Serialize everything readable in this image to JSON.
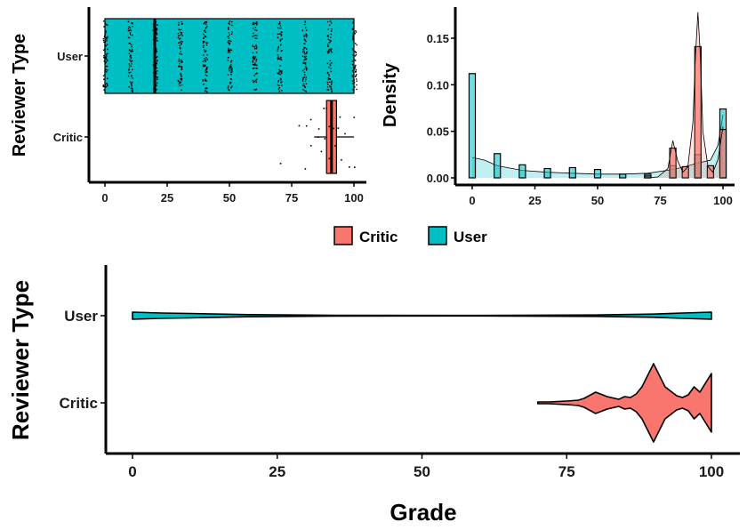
{
  "colors": {
    "critic": "#f8766d",
    "user": "#00bfc4"
  },
  "chart_data": [
    {
      "type": "box",
      "panel": "top-left",
      "xlabel": "",
      "ylabel": "Reviewer Type",
      "xlim": [
        0,
        100
      ],
      "xticks": [
        "0",
        "25",
        "50",
        "75",
        "100"
      ],
      "categories": [
        "User",
        "Critic"
      ],
      "boxes": [
        {
          "name": "User",
          "whisker_low": 0,
          "q1": 0,
          "median": 20,
          "q3": 100,
          "whisker_high": 100
        },
        {
          "name": "Critic",
          "whisker_low": 84,
          "q1": 89,
          "median": 91,
          "q3": 93,
          "whisker_high": 100
        }
      ],
      "jitter_user_columns": [
        0,
        10,
        20,
        30,
        40,
        50,
        60,
        70,
        80,
        90,
        100
      ],
      "jitter_critic_points": [
        70,
        78,
        80,
        80,
        82,
        83,
        85,
        86,
        87,
        88,
        88,
        89,
        90,
        90,
        90,
        91,
        91,
        92,
        93,
        94,
        95,
        96,
        98,
        100,
        100
      ]
    },
    {
      "type": "histogram",
      "panel": "top-right",
      "xlabel": "",
      "ylabel": "Density",
      "xlim": [
        0,
        100
      ],
      "ylim": [
        0,
        0.18
      ],
      "xticks": [
        "0",
        "25",
        "50",
        "75",
        "100"
      ],
      "yticks": [
        "0.00",
        "0.05",
        "0.10",
        "0.15"
      ],
      "bin_width": 2.5,
      "series": [
        {
          "name": "User",
          "bins": [
            {
              "x": 0,
              "y": 0.112
            },
            {
              "x": 10,
              "y": 0.026
            },
            {
              "x": 20,
              "y": 0.014
            },
            {
              "x": 30,
              "y": 0.01
            },
            {
              "x": 40,
              "y": 0.011
            },
            {
              "x": 50,
              "y": 0.009
            },
            {
              "x": 60,
              "y": 0.004
            },
            {
              "x": 70,
              "y": 0.004
            },
            {
              "x": 80,
              "y": 0.013
            },
            {
              "x": 90,
              "y": 0.025
            },
            {
              "x": 100,
              "y": 0.074
            }
          ]
        },
        {
          "name": "Critic",
          "bins": [
            {
              "x": 70,
              "y": 0.002
            },
            {
              "x": 80,
              "y": 0.032
            },
            {
              "x": 85,
              "y": 0.012
            },
            {
              "x": 90,
              "y": 0.141
            },
            {
              "x": 95,
              "y": 0.013
            },
            {
              "x": 100,
              "y": 0.052
            }
          ]
        }
      ],
      "density_curves": [
        {
          "name": "User",
          "points": [
            [
              0,
              0.022
            ],
            [
              5,
              0.019
            ],
            [
              10,
              0.013
            ],
            [
              20,
              0.008
            ],
            [
              30,
              0.006
            ],
            [
              40,
              0.005
            ],
            [
              50,
              0.004
            ],
            [
              60,
              0.004
            ],
            [
              70,
              0.005
            ],
            [
              80,
              0.009
            ],
            [
              85,
              0.012
            ],
            [
              90,
              0.016
            ],
            [
              95,
              0.019
            ],
            [
              98,
              0.035
            ],
            [
              100,
              0.068
            ]
          ]
        },
        {
          "name": "Critic",
          "points": [
            [
              70,
              0.0
            ],
            [
              74,
              0.001
            ],
            [
              78,
              0.01
            ],
            [
              80,
              0.04
            ],
            [
              82,
              0.018
            ],
            [
              84,
              0.006
            ],
            [
              86,
              0.012
            ],
            [
              88,
              0.06
            ],
            [
              89,
              0.13
            ],
            [
              90,
              0.178
            ],
            [
              91,
              0.13
            ],
            [
              92,
              0.05
            ],
            [
              94,
              0.012
            ],
            [
              96,
              0.006
            ],
            [
              98,
              0.02
            ],
            [
              100,
              0.055
            ]
          ]
        }
      ]
    },
    {
      "type": "violin",
      "panel": "bottom",
      "xlabel": "Grade",
      "ylabel": "Reviewer Type",
      "xlim": [
        0,
        100
      ],
      "xticks": [
        "0",
        "25",
        "50",
        "75",
        "100"
      ],
      "categories": [
        "User",
        "Critic"
      ],
      "violins": [
        {
          "name": "User",
          "profile": [
            [
              0,
              4
            ],
            [
              5,
              3
            ],
            [
              10,
              2.5
            ],
            [
              15,
              1.8
            ],
            [
              20,
              1.2
            ],
            [
              28,
              0.8
            ],
            [
              35,
              0.4
            ],
            [
              60,
              0.3
            ],
            [
              80,
              0.8
            ],
            [
              90,
              1.8
            ],
            [
              95,
              3
            ],
            [
              100,
              4
            ]
          ]
        },
        {
          "name": "Critic",
          "profile": [
            [
              70,
              1
            ],
            [
              72,
              1
            ],
            [
              75,
              2
            ],
            [
              77,
              3
            ],
            [
              78,
              5
            ],
            [
              80,
              12
            ],
            [
              82,
              7
            ],
            [
              84,
              4
            ],
            [
              85,
              7
            ],
            [
              86,
              6
            ],
            [
              87,
              10
            ],
            [
              88,
              18
            ],
            [
              90,
              44
            ],
            [
              92,
              18
            ],
            [
              94,
              8
            ],
            [
              95,
              6
            ],
            [
              96,
              9
            ],
            [
              97,
              18
            ],
            [
              98,
              12
            ],
            [
              100,
              33
            ]
          ]
        }
      ]
    }
  ],
  "legend": {
    "items": [
      {
        "label": "Critic",
        "color": "#f8766d"
      },
      {
        "label": "User",
        "color": "#00bfc4"
      }
    ]
  }
}
